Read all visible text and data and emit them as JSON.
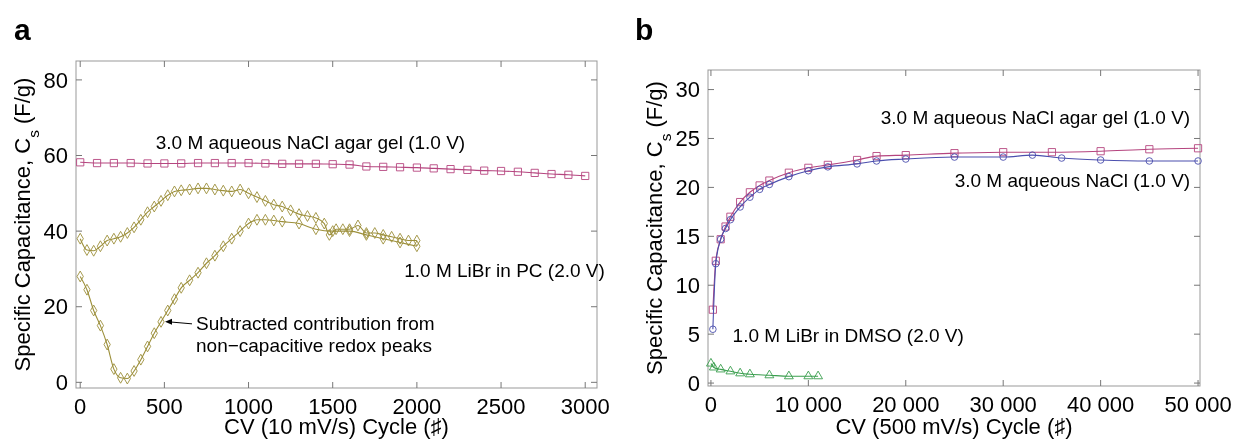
{
  "chart_data": [
    {
      "type": "line",
      "title": "a",
      "xlabel": "CV (10 mV/s) Cycle (♯)",
      "ylabel": "Specific Capacitance, C$_{s}$ (F/g)",
      "xlim": [
        -25,
        3070
      ],
      "ylim": [
        -1.5,
        85
      ],
      "xticks": [
        0,
        500,
        1000,
        1500,
        2000,
        2500,
        3000
      ],
      "yticks": [
        0,
        20,
        40,
        60,
        80
      ],
      "line_style": "solid",
      "grid": false,
      "annotations": [
        {
          "text": "Subtracted contribution from non−capacitive redox peaks",
          "x": 480,
          "y": 16
        }
      ],
      "series": [
        {
          "name": "3.0 M aqueous NaCl agar gel (1.0 V)",
          "color": "#b5457f",
          "marker": "square",
          "x": [
            0,
            100,
            200,
            300,
            400,
            500,
            600,
            700,
            800,
            900,
            1000,
            1100,
            1200,
            1300,
            1400,
            1500,
            1600,
            1700,
            1800,
            1900,
            2000,
            2100,
            2200,
            2300,
            2400,
            2500,
            2600,
            2700,
            2800,
            2900,
            3000
          ],
          "values": [
            58.2,
            58,
            58,
            58,
            57.9,
            57.9,
            57.9,
            58,
            58,
            58,
            58,
            57.9,
            57.8,
            57.8,
            57.8,
            57.7,
            57.6,
            57.1,
            57,
            56.9,
            56.8,
            56.6,
            56.4,
            56.2,
            56,
            55.9,
            55.7,
            55.4,
            55.1,
            54.9,
            54.6
          ]
        },
        {
          "name": "1.0 M LiBr in PC (2.0 V)",
          "color": "#9c8f3a",
          "marker": "diamond",
          "x": [
            0,
            40,
            80,
            120,
            160,
            200,
            240,
            280,
            320,
            360,
            400,
            440,
            480,
            520,
            560,
            600,
            650,
            700,
            750,
            800,
            850,
            900,
            950,
            1000,
            1050,
            1100,
            1150,
            1200,
            1250,
            1300,
            1350,
            1400,
            1450,
            1480,
            1520,
            1560,
            1600,
            1650,
            1700,
            1750,
            1800,
            1850,
            1900,
            1950,
            2000
          ],
          "values": [
            38,
            35,
            34.8,
            36,
            37.5,
            38,
            38.5,
            39.5,
            41,
            43,
            45,
            46.5,
            48,
            49.5,
            50.5,
            50.8,
            51,
            51.3,
            51.3,
            51,
            50.7,
            50.5,
            51,
            50,
            49,
            48,
            47,
            46.5,
            45.5,
            44.5,
            44,
            43.5,
            42,
            39,
            40.5,
            40.5,
            40.5,
            41.5,
            39.5,
            39.5,
            39,
            38.5,
            38,
            37.5,
            37.5
          ]
        },
        {
          "color": "#9c8f3a",
          "marker": "diamond",
          "x": [
            0,
            40,
            80,
            120,
            160,
            200,
            240,
            280,
            320,
            360,
            400,
            440,
            480,
            520,
            560,
            600,
            650,
            700,
            750,
            800,
            850,
            900,
            950,
            1000,
            1050,
            1100,
            1150,
            1200,
            1300,
            1400,
            1500,
            1600,
            1700,
            1800,
            1900,
            2000
          ],
          "values": [
            28,
            24.5,
            19,
            15,
            10,
            3.5,
            1.2,
            1,
            3,
            6,
            9.5,
            13,
            16,
            19,
            22,
            25,
            27,
            29,
            31.5,
            33.5,
            36,
            38,
            40,
            42,
            43,
            43,
            42.8,
            42.5,
            42,
            40.5,
            40,
            40,
            39,
            38,
            37,
            36
          ]
        }
      ]
    },
    {
      "type": "line",
      "title": "b",
      "xlabel": "CV (500 mV/s) Cycle (♯)",
      "ylabel": "Specific Capacitance, C$_{s}$ (F/g)",
      "xlim": [
        -300,
        50200
      ],
      "ylim": [
        -0.3,
        32
      ],
      "xticks": [
        0,
        {
          "value": 10000,
          "label": "10 000"
        },
        {
          "value": 20000,
          "label": "20 000"
        },
        {
          "value": 30000,
          "label": "30 000"
        },
        {
          "value": 40000,
          "label": "40 000"
        },
        {
          "value": 50000,
          "label": "50 000"
        }
      ],
      "yticks": [
        0,
        5,
        10,
        15,
        20,
        25,
        30
      ],
      "line_style": "solid",
      "grid": false,
      "series": [
        {
          "name": "3.0 M aqueous NaCl agar gel (1.0 V)",
          "color": "#b5457f",
          "marker": "square",
          "x": [
            200,
            500,
            1000,
            1500,
            2000,
            3000,
            4000,
            5000,
            6000,
            8000,
            10000,
            12000,
            15000,
            17000,
            20000,
            25000,
            30000,
            35000,
            40000,
            45000,
            50000
          ],
          "values": [
            7.5,
            12.5,
            14.7,
            16,
            17,
            18.5,
            19.5,
            20.2,
            20.7,
            21.5,
            22,
            22.3,
            22.8,
            23.2,
            23.3,
            23.5,
            23.6,
            23.6,
            23.7,
            23.9,
            24
          ]
        },
        {
          "name": "3.0 M aqueous NaCl (1.0 V)",
          "color": "#4b4fae",
          "marker": "circle",
          "x": [
            200,
            500,
            1000,
            1500,
            2000,
            3000,
            4000,
            5000,
            6000,
            8000,
            10000,
            12000,
            15000,
            17000,
            20000,
            25000,
            30000,
            33000,
            36000,
            40000,
            45000,
            50000
          ],
          "values": [
            5.5,
            12.2,
            14.7,
            15.8,
            16.7,
            18,
            19,
            19.8,
            20.3,
            21.1,
            21.7,
            22.1,
            22.4,
            22.7,
            22.9,
            23.1,
            23.1,
            23.3,
            23,
            22.8,
            22.7,
            22.7
          ]
        },
        {
          "name": "1.0 M LiBr in DMSO (2.0 V)",
          "color": "#3a9e4e",
          "marker": "triangle",
          "x": [
            0,
            300,
            1000,
            2000,
            3000,
            4000,
            6000,
            8000,
            10000,
            11000
          ],
          "values": [
            2,
            1.6,
            1.4,
            1.2,
            1,
            0.9,
            0.8,
            0.7,
            0.7,
            0.7
          ]
        }
      ]
    }
  ]
}
